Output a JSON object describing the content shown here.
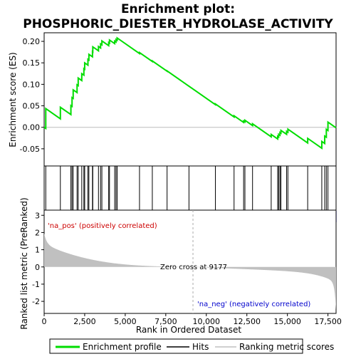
{
  "chart_data": {
    "type": "line",
    "title": "Enrichment plot:\nPHOSPHORIC_DIESTER_HYDROLASE_ACTIVITY",
    "title_lines": [
      "Enrichment plot:",
      "PHOSPHORIC_DIESTER_HYDROLASE_ACTIVITY"
    ],
    "xlabel": "Rank in Ordered Dataset",
    "ylabel_top": "Enrichment score (ES)",
    "ylabel_bottom": "Ranked list metric (PreRanked)",
    "xlim": [
      0,
      18000
    ],
    "x_ticks": [
      0,
      2500,
      5000,
      7500,
      10000,
      12500,
      15000,
      17500
    ],
    "x_tick_labels": [
      "0",
      "2,500",
      "5,000",
      "7,500",
      "10,000",
      "12,500",
      "15,000",
      "17,500"
    ],
    "es_ylim": [
      -0.09,
      0.22
    ],
    "es_ticks": [
      -0.05,
      0.0,
      0.05,
      0.1,
      0.15,
      0.2
    ],
    "es_tick_labels": [
      "-0.05",
      "0.00",
      "0.05",
      "0.10",
      "0.15",
      "0.20"
    ],
    "metric_ylim": [
      -2.7,
      3.3
    ],
    "metric_ticks": [
      -2,
      -1,
      0,
      1,
      2,
      3
    ],
    "metric_tick_labels": [
      "-2",
      "-1",
      "0",
      "1",
      "2",
      "3"
    ],
    "zero_cross_rank": 9177,
    "zero_cross_label": "Zero cross at 9177",
    "pos_label": "'na_pos' (positively correlated)",
    "neg_label": "'na_neg' (negatively correlated)",
    "grid": false,
    "legend_placement": "bottom",
    "series": [
      {
        "name": "Enrichment profile",
        "color": "#00dd00",
        "hits": [
          100,
          1000,
          1650,
          1720,
          1790,
          2030,
          2100,
          2320,
          2450,
          2500,
          2700,
          2760,
          2980,
          3000,
          3350,
          3480,
          3560,
          3980,
          4030,
          4350,
          4430,
          4500,
          5880,
          6670,
          7580,
          8930,
          10560,
          11710,
          12300,
          12380,
          12850,
          14000,
          14400,
          14460,
          14540,
          14600,
          14950,
          15030,
          16250,
          17120,
          17300,
          17400,
          17500
        ]
      }
    ],
    "legend_entries": [
      {
        "label": "Enrichment profile",
        "color": "#00dd00"
      },
      {
        "label": "Hits",
        "color": "#000000"
      },
      {
        "label": "Ranking metric scores",
        "color": "#c0c0c0"
      }
    ]
  },
  "colors": {
    "es_line": "#00dd00",
    "metric_fill": "#c0c0c0",
    "pos_text": "#cc0000",
    "neg_text": "#0000cc",
    "zero_line": "#aaaaaa"
  }
}
